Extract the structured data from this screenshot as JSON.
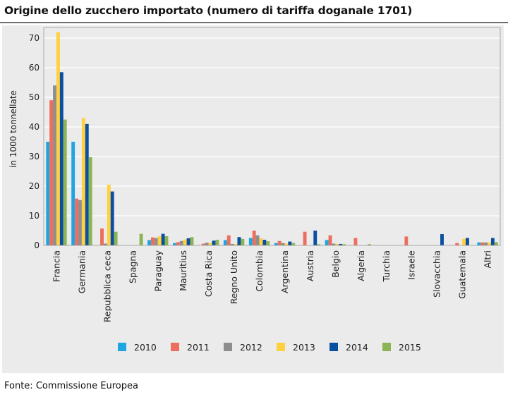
{
  "title": "Origine dello zucchero importato (numero di tariffa doganale 1701)",
  "source": "Fonte: Commissione Europea",
  "chart_data": {
    "type": "bar",
    "ylabel": "in 1000 tonnellate",
    "ylim": [
      0,
      70
    ],
    "yticks": [
      0,
      10,
      20,
      30,
      40,
      50,
      60,
      70
    ],
    "grid": true,
    "legend_position": "bottom",
    "categories": [
      "Francia",
      "Germania",
      "Repubblica ceca",
      "Spagna",
      "Paraguay",
      "Mauritius",
      "Costa Rica",
      "Regno Unito",
      "Colombia",
      "Argentina",
      "Austria",
      "Belgio",
      "Algeria",
      "Turchia",
      "Israele",
      "Slovacchia",
      "Guatemala",
      "Altri"
    ],
    "series": [
      {
        "name": "2010",
        "color": "#1fa6e0",
        "values": [
          35.0,
          35.0,
          0,
          0,
          1.8,
          0.8,
          0,
          1.8,
          2.5,
          0.8,
          0,
          1.8,
          0,
          0,
          0,
          0,
          0,
          1.0
        ]
      },
      {
        "name": "2011",
        "color": "#ee6e5d",
        "values": [
          49.0,
          15.8,
          5.7,
          0,
          2.7,
          1.1,
          0.6,
          3.4,
          5.0,
          1.5,
          4.6,
          3.4,
          2.5,
          0,
          3.0,
          0,
          0.8,
          1.0
        ]
      },
      {
        "name": "2012",
        "color": "#8e8e8e",
        "values": [
          54.0,
          15.3,
          0.6,
          0,
          2.5,
          1.5,
          0.9,
          0.5,
          3.4,
          0.8,
          0,
          0.6,
          0,
          0,
          0,
          0,
          0,
          1.0
        ]
      },
      {
        "name": "2013",
        "color": "#ffd040",
        "values": [
          72.0,
          43.0,
          20.5,
          0,
          3.1,
          2.0,
          0.8,
          0.5,
          2.4,
          0.6,
          0,
          0.5,
          0,
          0,
          0,
          0,
          2.2,
          1.0
        ]
      },
      {
        "name": "2014",
        "color": "#0a4fa0",
        "values": [
          58.5,
          41.0,
          18.2,
          0,
          3.9,
          2.4,
          1.6,
          2.8,
          1.9,
          1.3,
          5.0,
          0.5,
          0,
          0,
          0,
          3.8,
          2.5,
          2.5
        ]
      },
      {
        "name": "2015",
        "color": "#8cb454",
        "values": [
          42.5,
          29.8,
          4.6,
          3.9,
          3.1,
          2.8,
          1.9,
          2.2,
          1.4,
          0.8,
          0.4,
          0.4,
          0.4,
          0,
          0,
          0,
          0,
          1.1
        ]
      }
    ]
  }
}
